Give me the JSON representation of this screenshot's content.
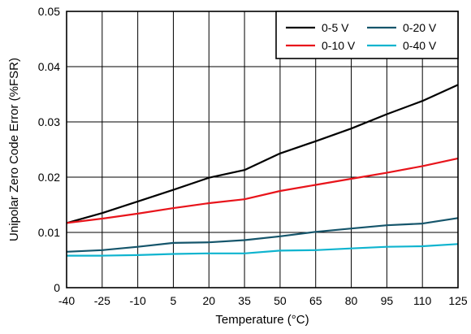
{
  "chart_data": {
    "type": "line",
    "title": "",
    "xlabel": "Temperature (°C)",
    "ylabel": "Unipolar Zero Code Error (%FSR)",
    "x": [
      -40,
      -25,
      -10,
      5,
      20,
      35,
      50,
      65,
      80,
      95,
      110,
      125
    ],
    "x_tick_labels": [
      "-40",
      "-25",
      "-10",
      "5",
      "20",
      "35",
      "50",
      "65",
      "80",
      "95",
      "110",
      "125"
    ],
    "xlim": [
      -40,
      125
    ],
    "y_ticks": [
      0,
      0.01,
      0.02,
      0.03,
      0.04,
      0.05
    ],
    "y_tick_labels": [
      "0",
      "0.01",
      "0.02",
      "0.03",
      "0.04",
      "0.05"
    ],
    "ylim": [
      0,
      0.05
    ],
    "grid": true,
    "legend_position": "top-right",
    "series": [
      {
        "name": "0-5 V",
        "color": "#000000",
        "values": [
          0.0117,
          0.0135,
          0.0156,
          0.0177,
          0.0199,
          0.0213,
          0.0243,
          0.0265,
          0.0288,
          0.0314,
          0.0338,
          0.0367
        ]
      },
      {
        "name": "0-10 V",
        "color": "#e8141b",
        "values": [
          0.0117,
          0.0125,
          0.0134,
          0.0144,
          0.0153,
          0.016,
          0.0175,
          0.0186,
          0.0197,
          0.0208,
          0.022,
          0.0234
        ]
      },
      {
        "name": "0-20 V",
        "color": "#15556b",
        "values": [
          0.0065,
          0.0068,
          0.0074,
          0.0081,
          0.0082,
          0.0086,
          0.0093,
          0.0101,
          0.0107,
          0.0113,
          0.0116,
          0.0126
        ]
      },
      {
        "name": "0-40 V",
        "color": "#0fb4cf",
        "values": [
          0.0058,
          0.0058,
          0.0059,
          0.0061,
          0.0062,
          0.0062,
          0.0067,
          0.0068,
          0.0071,
          0.0074,
          0.0075,
          0.0079
        ]
      }
    ]
  }
}
